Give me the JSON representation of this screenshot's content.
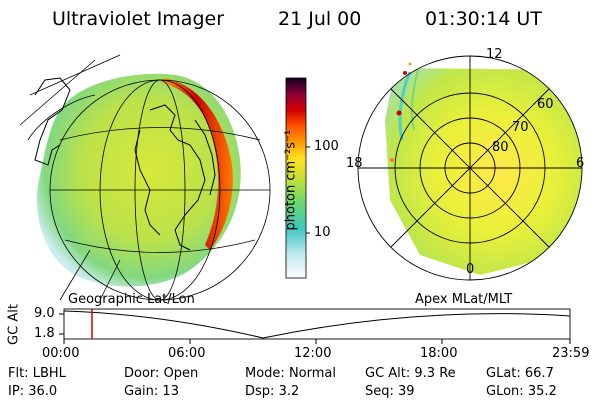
{
  "header": {
    "title": "Ultraviolet Imager",
    "date": "21 Jul 00",
    "time": "01:30:14 UT"
  },
  "colorbar": {
    "label": "photon cm⁻²s⁻¹",
    "ticks": [
      "100",
      "10"
    ]
  },
  "left_panel": {
    "caption": "Geographic Lat/Lon"
  },
  "right_panel": {
    "caption": "Apex MLat/MLT",
    "mlt_labels": {
      "top": "12",
      "left": "18",
      "right": "6",
      "bottom": "0"
    },
    "lat_labels": [
      "60",
      "70",
      "80"
    ]
  },
  "altitude_plot": {
    "ylabel": "GC Alt",
    "yticks": [
      "9.0",
      "1.8"
    ],
    "xticks": [
      "00:00",
      "06:00",
      "12:00",
      "18:00",
      "23:59"
    ],
    "marker_time_hours": 1.5
  },
  "status": {
    "row1": [
      {
        "label": "Flt:",
        "value": "LBHL"
      },
      {
        "label": "Door:",
        "value": "Open"
      },
      {
        "label": "Mode:",
        "value": "Normal"
      },
      {
        "label": "GC Alt:",
        "value": "9.3 Re"
      },
      {
        "label": "GLat:",
        "value": "66.7"
      }
    ],
    "row2": [
      {
        "label": "IP:",
        "value": "36.0"
      },
      {
        "label": "Gain:",
        "value": "13"
      },
      {
        "label": "Dsp:",
        "value": "3.2"
      },
      {
        "label": "Seq:",
        "value": "39"
      },
      {
        "label": "GLon:",
        "value": "35.2"
      }
    ]
  },
  "colors": {
    "marker": "#cc0000",
    "low": "#ffffff",
    "mid": "#c8e032",
    "high": "#cc0000"
  }
}
